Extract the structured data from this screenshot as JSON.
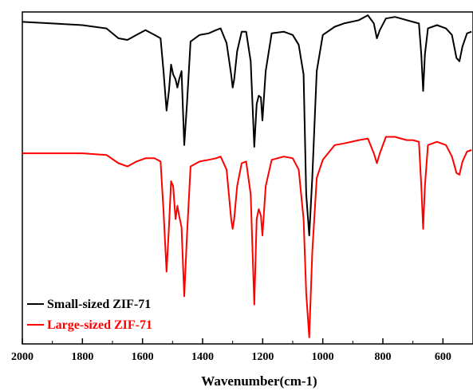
{
  "chart_data": {
    "type": "line",
    "xlabel": "Wavenumber(cm-1)",
    "ylabel": "",
    "xlim": [
      2000,
      500
    ],
    "x_reversed": true,
    "y_ticks_shown": false,
    "grid": false,
    "legend_position": "bottom-left",
    "x_ticks": [
      "2000",
      "1800",
      "1600",
      "1400",
      "1200",
      "1000",
      "800",
      "600"
    ],
    "x_tick_values": [
      2000,
      1800,
      1600,
      1400,
      1200,
      1000,
      800,
      600
    ],
    "series": [
      {
        "name": "Small-sized ZIF-71",
        "color": "#000000",
        "baseline": 0.8,
        "points": [
          [
            2000,
            0.8
          ],
          [
            1900,
            0.79
          ],
          [
            1800,
            0.78
          ],
          [
            1720,
            0.76
          ],
          [
            1680,
            0.7
          ],
          [
            1650,
            0.69
          ],
          [
            1620,
            0.72
          ],
          [
            1590,
            0.75
          ],
          [
            1560,
            0.72
          ],
          [
            1540,
            0.7
          ],
          [
            1530,
            0.5
          ],
          [
            1520,
            0.26
          ],
          [
            1512,
            0.38
          ],
          [
            1505,
            0.54
          ],
          [
            1498,
            0.48
          ],
          [
            1490,
            0.45
          ],
          [
            1484,
            0.4
          ],
          [
            1478,
            0.45
          ],
          [
            1470,
            0.5
          ],
          [
            1461,
            0.05
          ],
          [
            1452,
            0.3
          ],
          [
            1440,
            0.68
          ],
          [
            1410,
            0.72
          ],
          [
            1380,
            0.73
          ],
          [
            1355,
            0.75
          ],
          [
            1340,
            0.76
          ],
          [
            1320,
            0.67
          ],
          [
            1305,
            0.48
          ],
          [
            1300,
            0.4
          ],
          [
            1295,
            0.45
          ],
          [
            1285,
            0.62
          ],
          [
            1270,
            0.74
          ],
          [
            1255,
            0.74
          ],
          [
            1240,
            0.56
          ],
          [
            1228,
            0.04
          ],
          [
            1220,
            0.3
          ],
          [
            1213,
            0.35
          ],
          [
            1206,
            0.34
          ],
          [
            1201,
            0.2
          ],
          [
            1190,
            0.5
          ],
          [
            1170,
            0.73
          ],
          [
            1130,
            0.74
          ],
          [
            1100,
            0.72
          ],
          [
            1080,
            0.66
          ],
          [
            1064,
            0.48
          ],
          [
            1055,
            -0.25
          ],
          [
            1045,
            -0.5
          ],
          [
            1035,
            -0.15
          ],
          [
            1020,
            0.5
          ],
          [
            1000,
            0.72
          ],
          [
            960,
            0.77
          ],
          [
            930,
            0.79
          ],
          [
            880,
            0.81
          ],
          [
            850,
            0.84
          ],
          [
            830,
            0.79
          ],
          [
            820,
            0.7
          ],
          [
            810,
            0.75
          ],
          [
            790,
            0.82
          ],
          [
            760,
            0.83
          ],
          [
            740,
            0.82
          ],
          [
            720,
            0.81
          ],
          [
            700,
            0.8
          ],
          [
            680,
            0.79
          ],
          [
            672,
            0.6
          ],
          [
            666,
            0.38
          ],
          [
            660,
            0.6
          ],
          [
            650,
            0.76
          ],
          [
            620,
            0.78
          ],
          [
            590,
            0.76
          ],
          [
            570,
            0.72
          ],
          [
            555,
            0.58
          ],
          [
            545,
            0.56
          ],
          [
            535,
            0.65
          ],
          [
            520,
            0.73
          ],
          [
            505,
            0.74
          ]
        ]
      },
      {
        "name": "Large-sized ZIF-71",
        "color": "#ff0000",
        "baseline": 0.0,
        "points": [
          [
            2000,
            0.0
          ],
          [
            1900,
            0.0
          ],
          [
            1800,
            0.0
          ],
          [
            1720,
            -0.01
          ],
          [
            1680,
            -0.06
          ],
          [
            1650,
            -0.08
          ],
          [
            1620,
            -0.05
          ],
          [
            1590,
            -0.03
          ],
          [
            1560,
            -0.03
          ],
          [
            1540,
            -0.05
          ],
          [
            1530,
            -0.35
          ],
          [
            1520,
            -0.72
          ],
          [
            1512,
            -0.45
          ],
          [
            1505,
            -0.17
          ],
          [
            1498,
            -0.2
          ],
          [
            1490,
            -0.4
          ],
          [
            1484,
            -0.32
          ],
          [
            1478,
            -0.38
          ],
          [
            1470,
            -0.45
          ],
          [
            1461,
            -0.87
          ],
          [
            1452,
            -0.5
          ],
          [
            1440,
            -0.08
          ],
          [
            1410,
            -0.05
          ],
          [
            1380,
            -0.04
          ],
          [
            1355,
            -0.03
          ],
          [
            1340,
            -0.02
          ],
          [
            1320,
            -0.1
          ],
          [
            1305,
            -0.4
          ],
          [
            1300,
            -0.46
          ],
          [
            1295,
            -0.4
          ],
          [
            1285,
            -0.2
          ],
          [
            1270,
            -0.06
          ],
          [
            1255,
            -0.05
          ],
          [
            1240,
            -0.25
          ],
          [
            1228,
            -0.92
          ],
          [
            1220,
            -0.4
          ],
          [
            1213,
            -0.34
          ],
          [
            1206,
            -0.38
          ],
          [
            1201,
            -0.5
          ],
          [
            1190,
            -0.2
          ],
          [
            1170,
            -0.04
          ],
          [
            1130,
            -0.02
          ],
          [
            1100,
            -0.03
          ],
          [
            1080,
            -0.1
          ],
          [
            1064,
            -0.4
          ],
          [
            1055,
            -0.85
          ],
          [
            1045,
            -1.12
          ],
          [
            1035,
            -0.6
          ],
          [
            1020,
            -0.15
          ],
          [
            1000,
            -0.04
          ],
          [
            960,
            0.05
          ],
          [
            930,
            0.06
          ],
          [
            880,
            0.08
          ],
          [
            850,
            0.09
          ],
          [
            830,
            0.0
          ],
          [
            820,
            -0.06
          ],
          [
            810,
            0.0
          ],
          [
            790,
            0.1
          ],
          [
            760,
            0.1
          ],
          [
            740,
            0.09
          ],
          [
            720,
            0.08
          ],
          [
            700,
            0.08
          ],
          [
            680,
            0.07
          ],
          [
            672,
            -0.2
          ],
          [
            666,
            -0.46
          ],
          [
            660,
            -0.2
          ],
          [
            650,
            0.05
          ],
          [
            620,
            0.07
          ],
          [
            590,
            0.05
          ],
          [
            570,
            -0.02
          ],
          [
            555,
            -0.12
          ],
          [
            545,
            -0.13
          ],
          [
            535,
            -0.05
          ],
          [
            520,
            0.01
          ],
          [
            505,
            0.02
          ]
        ]
      }
    ]
  }
}
